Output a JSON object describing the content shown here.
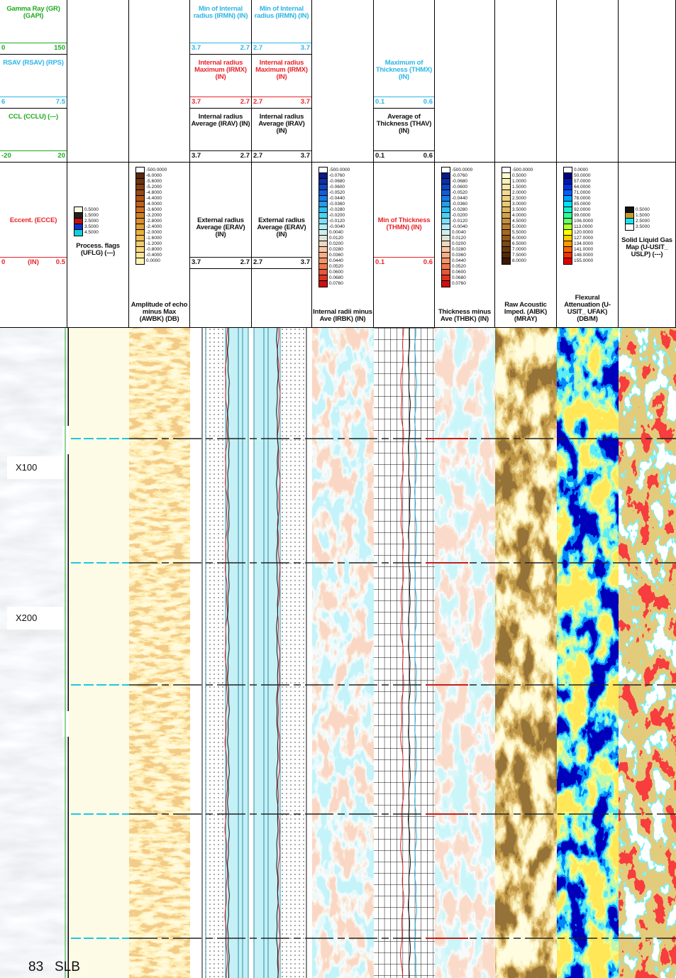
{
  "tracks": [
    {
      "curves": [
        {
          "title": "Gamma Ray (GR) (GAPI)",
          "left": "0",
          "right": "150",
          "color": "#1faa1f"
        },
        {
          "title": "RSAV (RSAV) (RPS)",
          "left": "6",
          "right": "7.5",
          "color": "#2bb5e6"
        },
        {
          "title": "CCL (CCLU) (---)",
          "left": "-20",
          "right": "20",
          "color": "#1faa1f"
        }
      ],
      "lower_curves": [
        {
          "title": "Eccent. (ECCE)",
          "left": "0",
          "unit": "(IN)",
          "right": "0.5",
          "color": "#e8242a"
        }
      ]
    },
    {
      "scale": [
        "0.5000",
        "1.5000",
        "2.5000",
        "3.5000",
        "4.5000"
      ],
      "title": "Process. flags (UFLG) (---)"
    },
    {
      "scale": [
        "-500.0000",
        "-6.0000",
        "-5.6000",
        "-5.2000",
        "-4.8000",
        "-4.4000",
        "-4.0000",
        "-3.6000",
        "-3.2000",
        "-2.8000",
        "-2.4000",
        "-2.0000",
        "-1.6000",
        "-1.2000",
        "-0.8000",
        "-0.4000",
        "0.0000"
      ],
      "title": "Amplitude of echo minus Max (AWBK) (DB)"
    },
    {
      "curves": [
        {
          "title": "Min of Internal radius (IRMN) (IN)",
          "left": "3.7",
          "right": "2.7",
          "color": "#2bb5e6"
        },
        {
          "title": "Internal radius Maximum (IRMX) (IN)",
          "left": "3.7",
          "right": "2.7",
          "color": "#e8242a"
        },
        {
          "title": "Internal radius Average (IRAV) (IN)",
          "left": "3.7",
          "right": "2.7",
          "color": "#111111"
        }
      ],
      "lower_curves": [
        {
          "title": "External radius Average (ERAV) (IN)",
          "left": "3.7",
          "right": "2.7",
          "color": "#111111"
        }
      ]
    },
    {
      "curves": [
        {
          "title": "Min of Internal radius (IRMN) (IN)",
          "left": "2.7",
          "right": "3.7",
          "color": "#2bb5e6"
        },
        {
          "title": "Internal radius Maximum (IRMX) (IN)",
          "left": "2.7",
          "right": "3.7",
          "color": "#e8242a"
        },
        {
          "title": "Internal radius Average (IRAV) (IN)",
          "left": "2.7",
          "right": "3.7",
          "color": "#111111"
        }
      ],
      "lower_curves": [
        {
          "title": "External radius Average (ERAV) (IN)",
          "left": "2.7",
          "right": "3.7",
          "color": "#111111"
        }
      ]
    },
    {
      "scale": [
        "-500.0000",
        "-0.0760",
        "-0.0680",
        "-0.0600",
        "-0.0520",
        "-0.0440",
        "-0.0360",
        "-0.0280",
        "-0.0200",
        "-0.0120",
        "-0.0040",
        "0.0040",
        "0.0120",
        "0.0200",
        "0.0280",
        "0.0360",
        "0.0440",
        "0.0520",
        "0.0600",
        "0.0680",
        "0.0760"
      ],
      "title": "Internal radii minus Ave (IRBK) (IN)"
    },
    {
      "curves": [
        {
          "title": "Maximum of Thickness (THMX) (IN)",
          "left": "0.1",
          "right": "0.6",
          "color": "#2bb5e6"
        },
        {
          "title": "Average of Thickness (THAV) (IN)",
          "left": "0.1",
          "right": "0.6",
          "color": "#111111"
        }
      ],
      "lower_curves": [
        {
          "title": "Min of Thickness (THMN) (IN)",
          "left": "0.1",
          "right": "0.6",
          "color": "#e8242a"
        }
      ]
    },
    {
      "scale": [
        "-500.0000",
        "-0.0760",
        "-0.0680",
        "-0.0600",
        "-0.0520",
        "-0.0440",
        "-0.0360",
        "-0.0280",
        "-0.0200",
        "-0.0120",
        "-0.0040",
        "0.0040",
        "0.0120",
        "0.0200",
        "0.0280",
        "0.0360",
        "0.0440",
        "0.0520",
        "0.0600",
        "0.0680",
        "0.0760"
      ],
      "title": "Thickness minus Ave (THBK) (IN)"
    },
    {
      "scale": [
        "-500.0000",
        "0.5000",
        "1.0000",
        "1.5000",
        "2.0000",
        "2.5000",
        "3.0000",
        "3.5000",
        "4.0000",
        "4.5000",
        "5.0000",
        "5.5000",
        "6.0000",
        "6.5000",
        "7.0000",
        "7.5000",
        "8.0000"
      ],
      "title": "Raw Acoustic Imped. (AIBK) (MRAY)"
    },
    {
      "scale": [
        "0.0000",
        "50.0000",
        "57.0000",
        "64.0000",
        "71.0000",
        "78.0000",
        "85.0000",
        "92.0000",
        "99.0000",
        "106.0000",
        "113.0000",
        "120.0000",
        "127.0000",
        "134.0000",
        "141.0000",
        "148.0000",
        "155.0000"
      ],
      "title": "Flexural Attenuation (U-USIT_ UFAK) (DB/M)"
    },
    {
      "scale": [
        "0.5000",
        "1.5000",
        "2.5000",
        "3.5000"
      ],
      "title": "Solid Liquid Gas Map (U-USIT_ USLP) (---)"
    }
  ],
  "depth_labels": [
    "X100",
    "X200"
  ],
  "footer": {
    "page": "83",
    "source": "SLB"
  }
}
